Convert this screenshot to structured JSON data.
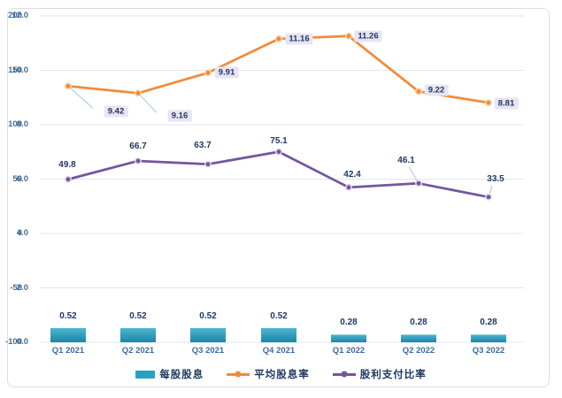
{
  "chart_data": {
    "type": "combo",
    "title": "",
    "categories": [
      "Q1 2021",
      "Q2 2021",
      "Q3 2021",
      "Q4 2021",
      "Q1 2022",
      "Q2 2022",
      "Q3 2022"
    ],
    "left_axis": {
      "min": 0,
      "max": 12,
      "ticks": [
        "0.0",
        "2.0",
        "4.0",
        "6.0",
        "8.0",
        "10.0",
        "12.0"
      ]
    },
    "right_axis": {
      "min": -100,
      "max": 200,
      "ticks": [
        "-100",
        "-50",
        "0",
        "50",
        "100",
        "150",
        "200"
      ]
    },
    "grid": true,
    "legend_position": "bottom",
    "series": [
      {
        "name": "每股股息",
        "type": "bar",
        "axis": "left",
        "values": [
          0.52,
          0.52,
          0.52,
          0.52,
          0.28,
          0.28,
          0.28
        ],
        "labels": [
          "0.52",
          "0.52",
          "0.52",
          "0.52",
          "0.28",
          "0.28",
          "0.28"
        ]
      },
      {
        "name": "平均股息率",
        "type": "line",
        "axis": "left",
        "values": [
          9.42,
          9.16,
          9.91,
          11.16,
          11.26,
          9.22,
          8.81
        ],
        "labels": [
          "9.42",
          "9.16",
          "9.91",
          "11.16",
          "11.26",
          "9.22",
          "8.81"
        ],
        "label_style": "boxed"
      },
      {
        "name": "股利支付比率",
        "type": "line",
        "axis": "right",
        "values": [
          49.8,
          66.7,
          63.7,
          75.1,
          42.4,
          46.1,
          33.5
        ],
        "labels": [
          "49.8",
          "66.7",
          "63.7",
          "75.1",
          "42.4",
          "46.1",
          "33.5"
        ],
        "label_style": "plain"
      }
    ]
  },
  "colors": {
    "bar": "#2AA0BF",
    "bar_top": "#4DB6CE",
    "bar_bottom": "#1B86A6",
    "orange": "#F28B38",
    "orange_ring": "#FAD3AE",
    "purple": "#73569F",
    "purple_ring": "#DFD9EB",
    "value_label": "#1F3864",
    "axis_tick": "#456E99",
    "category_label": "#3A6CA4",
    "label_box_bg": "#E8E4F1",
    "leader": "#A8C6E5",
    "grid": "#E2E6EC",
    "frame_border": "#D8DFEA",
    "background": "#FFFFFF"
  }
}
